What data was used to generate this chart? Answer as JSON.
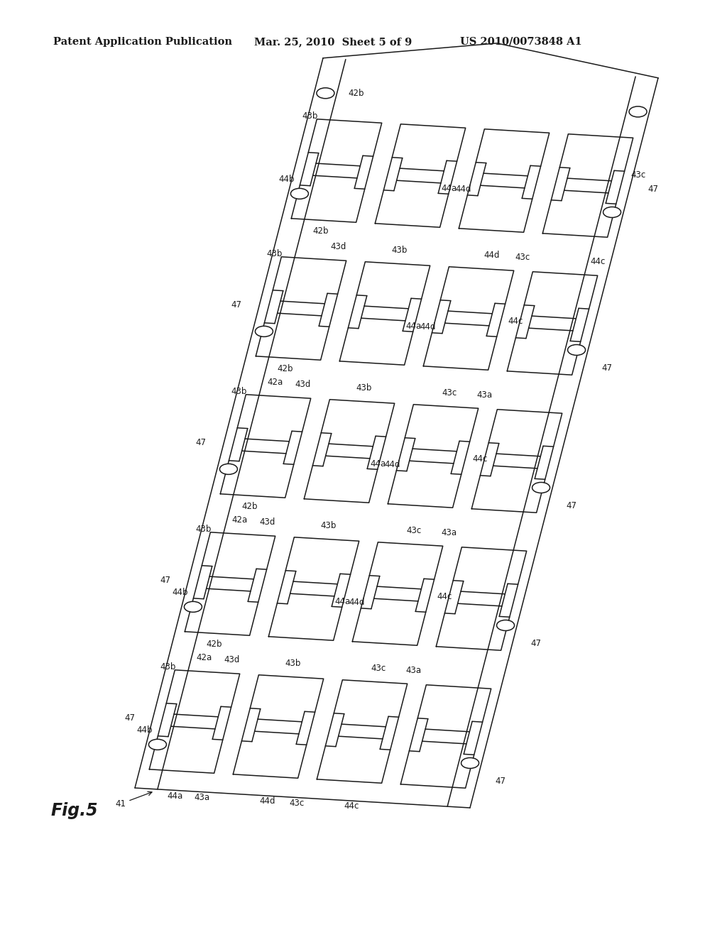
{
  "header_left": "Patent Application Publication",
  "header_mid": "Mar. 25, 2010  Sheet 5 of 9",
  "header_right": "US 2010/0073848 A1",
  "fig_label": "Fig.5",
  "background": "#ffffff",
  "line_color": "#1a1a1a",
  "lw": 1.1,
  "header_fontsize": 10.5,
  "label_fontsize": 8.5,
  "fig_fontsize": 17
}
